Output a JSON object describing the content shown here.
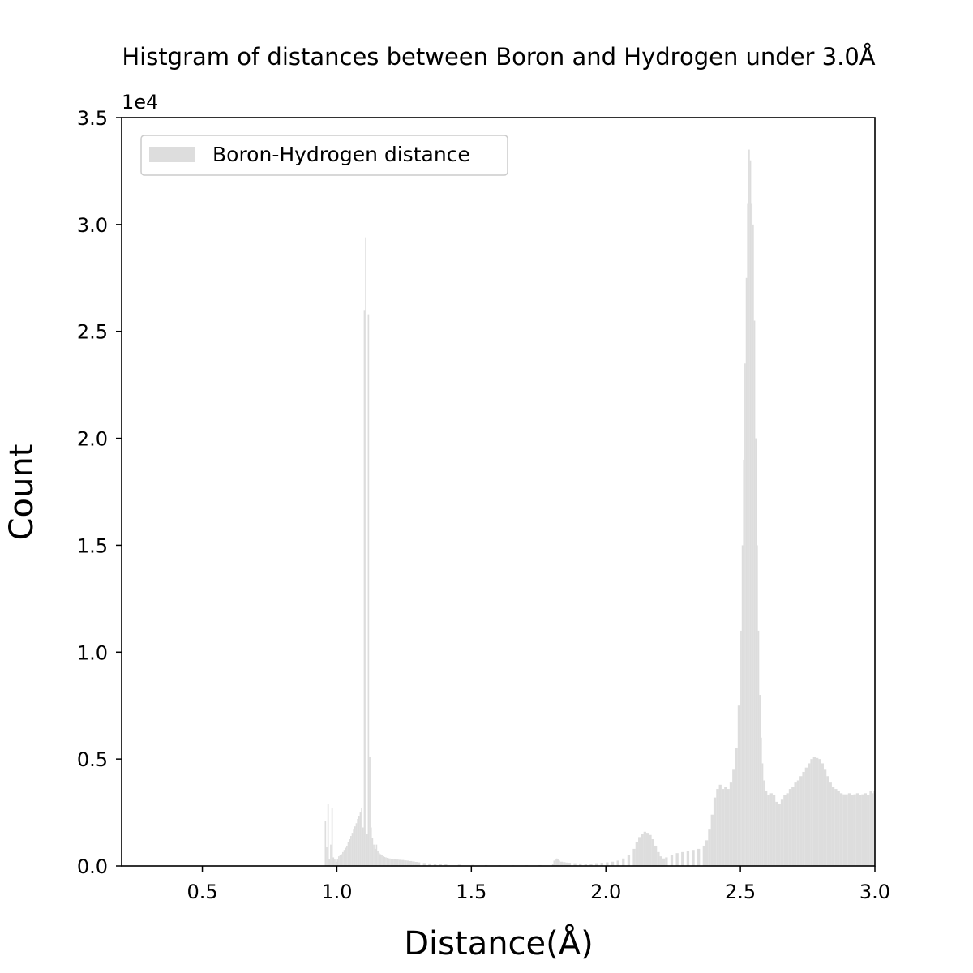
{
  "chart_data": {
    "type": "bar",
    "title": "Histgram of distances between Boron and Hydrogen under 3.0Å",
    "xlabel": "Distance(Å)",
    "ylabel": "Count",
    "y_offset_label": "1e4",
    "xlim": [
      0.2,
      3.0
    ],
    "ylim": [
      0,
      35000
    ],
    "xticks": [
      "0.5",
      "1.0",
      "1.5",
      "2.0",
      "2.5",
      "3.0"
    ],
    "yticks": [
      "0.0",
      "0.5",
      "1.0",
      "1.5",
      "2.0",
      "2.5",
      "3.0",
      "3.5"
    ],
    "grid": false,
    "legend": {
      "location": "top-left",
      "entries": [
        "Boron-Hydrogen distance"
      ]
    },
    "bar_color": "#dddddd",
    "bin_width": 0.005,
    "series": [
      {
        "name": "Boron-Hydrogen distance",
        "points": [
          [
            0.955,
            2100
          ],
          [
            0.96,
            900
          ],
          [
            0.965,
            2900
          ],
          [
            0.97,
            300
          ],
          [
            0.975,
            1000
          ],
          [
            0.98,
            2700
          ],
          [
            0.985,
            400
          ],
          [
            0.99,
            300
          ],
          [
            0.995,
            200
          ],
          [
            1.0,
            300
          ],
          [
            1.005,
            450
          ],
          [
            1.01,
            500
          ],
          [
            1.015,
            550
          ],
          [
            1.02,
            650
          ],
          [
            1.025,
            750
          ],
          [
            1.03,
            850
          ],
          [
            1.035,
            950
          ],
          [
            1.04,
            1100
          ],
          [
            1.045,
            1250
          ],
          [
            1.05,
            1400
          ],
          [
            1.055,
            1550
          ],
          [
            1.06,
            1700
          ],
          [
            1.065,
            1850
          ],
          [
            1.07,
            2000
          ],
          [
            1.075,
            2200
          ],
          [
            1.08,
            2350
          ],
          [
            1.085,
            2500
          ],
          [
            1.09,
            2700
          ],
          [
            1.095,
            1800
          ],
          [
            1.1,
            26000
          ],
          [
            1.105,
            29400
          ],
          [
            1.11,
            1500
          ],
          [
            1.115,
            25800
          ],
          [
            1.12,
            5100
          ],
          [
            1.125,
            1800
          ],
          [
            1.13,
            1300
          ],
          [
            1.135,
            1000
          ],
          [
            1.14,
            800
          ],
          [
            1.145,
            1000
          ],
          [
            1.15,
            700
          ],
          [
            1.155,
            600
          ],
          [
            1.16,
            550
          ],
          [
            1.165,
            500
          ],
          [
            1.17,
            450
          ],
          [
            1.175,
            420
          ],
          [
            1.18,
            400
          ],
          [
            1.185,
            380
          ],
          [
            1.19,
            360
          ],
          [
            1.195,
            350
          ],
          [
            1.2,
            340
          ],
          [
            1.21,
            320
          ],
          [
            1.22,
            300
          ],
          [
            1.23,
            290
          ],
          [
            1.24,
            280
          ],
          [
            1.25,
            260
          ],
          [
            1.26,
            250
          ],
          [
            1.27,
            230
          ],
          [
            1.28,
            210
          ],
          [
            1.29,
            190
          ],
          [
            1.3,
            170
          ],
          [
            1.32,
            140
          ],
          [
            1.34,
            120
          ],
          [
            1.36,
            100
          ],
          [
            1.38,
            90
          ],
          [
            1.4,
            80
          ],
          [
            1.45,
            60
          ],
          [
            1.5,
            50
          ],
          [
            1.55,
            40
          ],
          [
            1.6,
            30
          ],
          [
            1.65,
            30
          ],
          [
            1.7,
            30
          ],
          [
            1.75,
            40
          ],
          [
            1.8,
            100
          ],
          [
            1.805,
            250
          ],
          [
            1.81,
            300
          ],
          [
            1.815,
            350
          ],
          [
            1.82,
            300
          ],
          [
            1.825,
            250
          ],
          [
            1.83,
            200
          ],
          [
            1.84,
            180
          ],
          [
            1.85,
            160
          ],
          [
            1.86,
            150
          ],
          [
            1.88,
            130
          ],
          [
            1.9,
            120
          ],
          [
            1.92,
            110
          ],
          [
            1.94,
            110
          ],
          [
            1.96,
            130
          ],
          [
            1.98,
            150
          ],
          [
            2.0,
            170
          ],
          [
            2.02,
            200
          ],
          [
            2.04,
            250
          ],
          [
            2.06,
            350
          ],
          [
            2.08,
            500
          ],
          [
            2.1,
            800
          ],
          [
            2.11,
            1100
          ],
          [
            2.12,
            1350
          ],
          [
            2.13,
            1500
          ],
          [
            2.14,
            1600
          ],
          [
            2.15,
            1550
          ],
          [
            2.16,
            1450
          ],
          [
            2.17,
            1250
          ],
          [
            2.18,
            950
          ],
          [
            2.19,
            650
          ],
          [
            2.2,
            450
          ],
          [
            2.21,
            350
          ],
          [
            2.22,
            400
          ],
          [
            2.24,
            500
          ],
          [
            2.26,
            600
          ],
          [
            2.28,
            650
          ],
          [
            2.3,
            700
          ],
          [
            2.32,
            750
          ],
          [
            2.34,
            800
          ],
          [
            2.36,
            950
          ],
          [
            2.37,
            1200
          ],
          [
            2.38,
            1700
          ],
          [
            2.39,
            2400
          ],
          [
            2.4,
            3200
          ],
          [
            2.41,
            3600
          ],
          [
            2.42,
            3800
          ],
          [
            2.43,
            3600
          ],
          [
            2.44,
            3700
          ],
          [
            2.45,
            3600
          ],
          [
            2.46,
            3900
          ],
          [
            2.47,
            4500
          ],
          [
            2.48,
            5500
          ],
          [
            2.49,
            7500
          ],
          [
            2.5,
            11000
          ],
          [
            2.505,
            15000
          ],
          [
            2.51,
            19000
          ],
          [
            2.515,
            23500
          ],
          [
            2.52,
            27500
          ],
          [
            2.525,
            31000
          ],
          [
            2.53,
            33500
          ],
          [
            2.535,
            33000
          ],
          [
            2.54,
            31000
          ],
          [
            2.545,
            30000
          ],
          [
            2.55,
            25500
          ],
          [
            2.555,
            20000
          ],
          [
            2.56,
            15000
          ],
          [
            2.565,
            11000
          ],
          [
            2.57,
            8000
          ],
          [
            2.575,
            6000
          ],
          [
            2.58,
            4800
          ],
          [
            2.585,
            4000
          ],
          [
            2.59,
            3500
          ],
          [
            2.6,
            3300
          ],
          [
            2.61,
            3400
          ],
          [
            2.62,
            3300
          ],
          [
            2.63,
            3000
          ],
          [
            2.64,
            2900
          ],
          [
            2.65,
            3100
          ],
          [
            2.66,
            3300
          ],
          [
            2.67,
            3400
          ],
          [
            2.68,
            3600
          ],
          [
            2.69,
            3700
          ],
          [
            2.7,
            3900
          ],
          [
            2.71,
            4000
          ],
          [
            2.72,
            4200
          ],
          [
            2.73,
            4400
          ],
          [
            2.74,
            4600
          ],
          [
            2.75,
            4800
          ],
          [
            2.76,
            5000
          ],
          [
            2.77,
            5100
          ],
          [
            2.78,
            5050
          ],
          [
            2.79,
            5000
          ],
          [
            2.8,
            4800
          ],
          [
            2.81,
            4500
          ],
          [
            2.82,
            4200
          ],
          [
            2.83,
            3900
          ],
          [
            2.84,
            3700
          ],
          [
            2.85,
            3600
          ],
          [
            2.86,
            3500
          ],
          [
            2.87,
            3400
          ],
          [
            2.88,
            3350
          ],
          [
            2.89,
            3350
          ],
          [
            2.9,
            3400
          ],
          [
            2.91,
            3300
          ],
          [
            2.92,
            3350
          ],
          [
            2.93,
            3400
          ],
          [
            2.94,
            3300
          ],
          [
            2.95,
            3350
          ],
          [
            2.96,
            3400
          ],
          [
            2.97,
            3300
          ],
          [
            2.98,
            3500
          ],
          [
            2.99,
            3400
          ],
          [
            2.995,
            3500
          ]
        ]
      }
    ]
  }
}
